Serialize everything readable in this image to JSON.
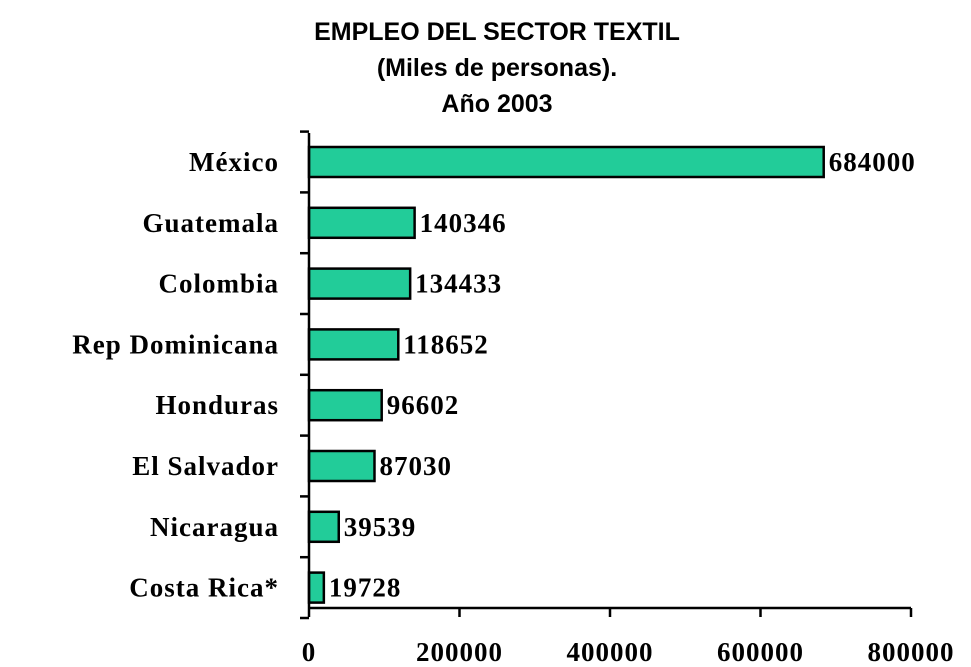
{
  "chart_data": {
    "type": "bar",
    "orientation": "horizontal",
    "title_lines": [
      "EMPLEO DEL SECTOR TEXTIL",
      "(Miles de personas).",
      "Año 2003"
    ],
    "categories": [
      "México",
      "Guatemala",
      "Colombia",
      "Rep Dominicana",
      "Honduras",
      "El Salvador",
      "Nicaragua",
      "Costa Rica*"
    ],
    "values": [
      684000,
      140346,
      134433,
      118652,
      96602,
      87030,
      39539,
      19728
    ],
    "value_labels": [
      "684000",
      "140346",
      "134433",
      "118652",
      "96602",
      "87030",
      "39539",
      "19728"
    ],
    "xlim": [
      0,
      800000
    ],
    "x_ticks": [
      0,
      200000,
      400000,
      600000,
      800000
    ],
    "x_tick_labels": [
      "0",
      "200000",
      "400000",
      "600000",
      "800000"
    ],
    "bar_color": "#22cc99",
    "grid": false,
    "legend": "none"
  }
}
